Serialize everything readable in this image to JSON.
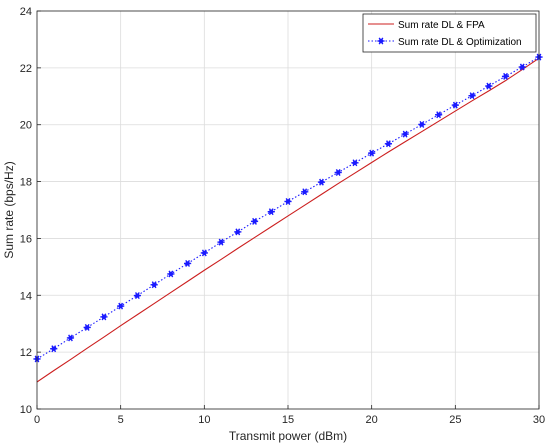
{
  "chart_data": {
    "type": "line",
    "title": "",
    "xlabel": "Transmit power (dBm)",
    "ylabel": "Sum rate (bps/Hz)",
    "xlim": [
      0,
      30
    ],
    "ylim": [
      10,
      24
    ],
    "xticks": [
      0,
      5,
      10,
      15,
      20,
      25,
      30
    ],
    "yticks": [
      10,
      12,
      14,
      16,
      18,
      20,
      22,
      24
    ],
    "grid": true,
    "legend_position": "top-right",
    "x": [
      0,
      1,
      2,
      3,
      4,
      5,
      6,
      7,
      8,
      9,
      10,
      11,
      12,
      13,
      14,
      15,
      16,
      17,
      18,
      19,
      20,
      21,
      22,
      23,
      24,
      25,
      26,
      27,
      28,
      29,
      30
    ],
    "series": [
      {
        "name": "Sum rate DL & FPA",
        "color": "#cc1f1f",
        "line_style": "solid",
        "marker": "none",
        "values": [
          10.95,
          11.35,
          11.74,
          12.14,
          12.53,
          12.93,
          13.32,
          13.71,
          14.1,
          14.49,
          14.88,
          15.26,
          15.65,
          16.03,
          16.41,
          16.79,
          17.17,
          17.55,
          17.93,
          18.3,
          18.67,
          19.04,
          19.4,
          19.76,
          20.12,
          20.48,
          20.84,
          21.19,
          21.55,
          21.94,
          22.34
        ]
      },
      {
        "name": "Sum rate DL & Optimization",
        "color": "#1a1aff",
        "line_style": "dotted",
        "marker": "asterisk",
        "values": [
          11.76,
          12.12,
          12.5,
          12.87,
          13.24,
          13.62,
          13.99,
          14.37,
          14.75,
          15.12,
          15.49,
          15.87,
          16.23,
          16.6,
          16.94,
          17.3,
          17.64,
          17.98,
          18.32,
          18.66,
          19.0,
          19.33,
          19.67,
          20.01,
          20.35,
          20.69,
          21.02,
          21.36,
          21.7,
          22.03,
          22.38
        ]
      }
    ]
  }
}
